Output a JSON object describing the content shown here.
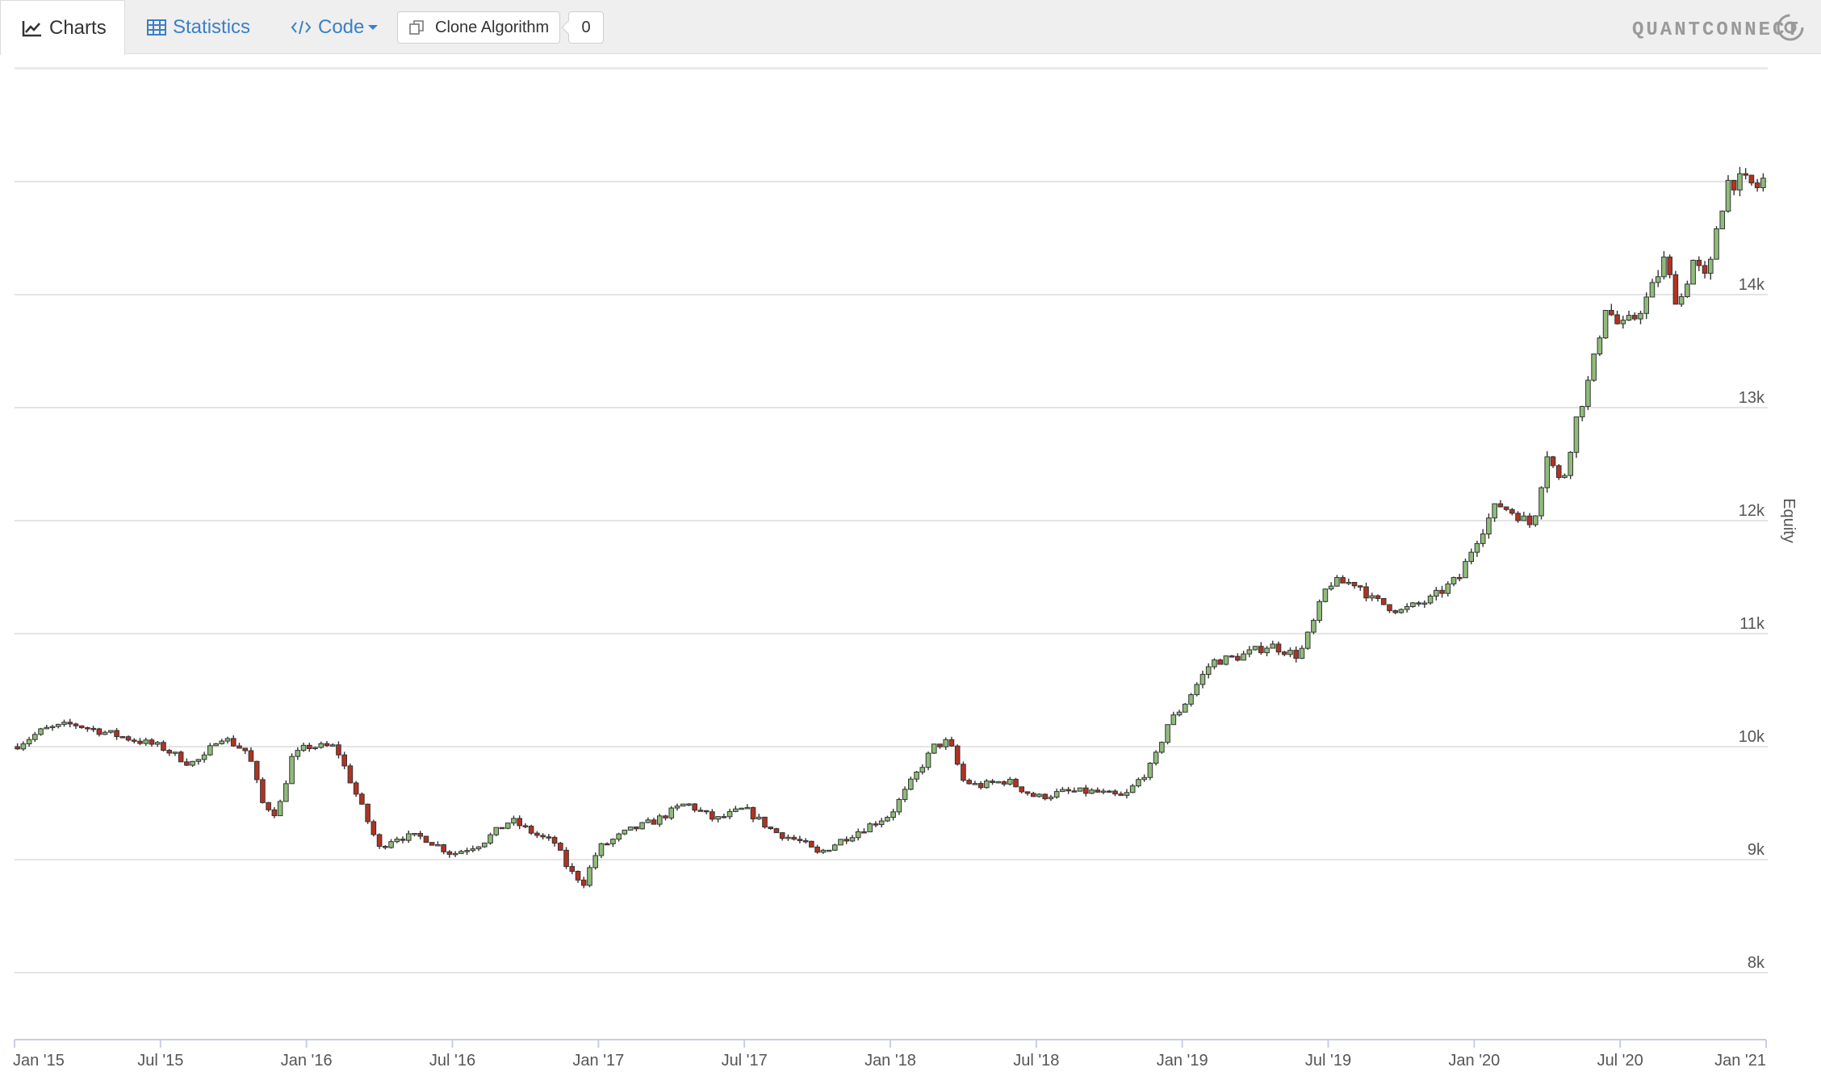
{
  "toolbar": {
    "tabs": [
      {
        "label": "Charts",
        "icon": "line-chart-icon",
        "active": true
      },
      {
        "label": "Statistics",
        "icon": "table-icon",
        "active": false
      },
      {
        "label": "Code",
        "icon": "code-icon",
        "active": false
      }
    ],
    "clone_label": "Clone Algorithm",
    "clone_count": "0",
    "brand": "QUANTCONNECT",
    "colors": {
      "link": "#3a80c4",
      "bar": "#efefef"
    }
  },
  "chart_data": {
    "type": "candlestick",
    "ylabel": "Equity",
    "ylim": [
      7500,
      15000
    ],
    "y_ticks": [
      {
        "value": 8000,
        "label": "8k"
      },
      {
        "value": 9000,
        "label": "9k"
      },
      {
        "value": 10000,
        "label": "10k"
      },
      {
        "value": 11000,
        "label": "11k"
      },
      {
        "value": 12000,
        "label": "12k"
      },
      {
        "value": 13000,
        "label": "13k"
      },
      {
        "value": 14000,
        "label": "14k"
      }
    ],
    "y_gridlines": [
      8000,
      9000,
      10000,
      11000,
      12000,
      13000,
      14000,
      15000,
      16000
    ],
    "x_ticks": [
      "Jan '15",
      "Jul '15",
      "Jan '16",
      "Jul '16",
      "Jan '17",
      "Jul '17",
      "Jan '18",
      "Jul '18",
      "Jan '19",
      "Jul '19",
      "Jan '20",
      "Jul '20",
      "Jan '21"
    ],
    "up_color": "#8fbc7a",
    "down_color": "#b33222",
    "anchors": [
      {
        "t": 0,
        "v": 10000
      },
      {
        "t": 0.1,
        "v": 10150
      },
      {
        "t": 0.2,
        "v": 10200
      },
      {
        "t": 0.35,
        "v": 10100
      },
      {
        "t": 0.5,
        "v": 10000
      },
      {
        "t": 0.6,
        "v": 9850
      },
      {
        "t": 0.65,
        "v": 9900
      },
      {
        "t": 0.7,
        "v": 10100
      },
      {
        "t": 0.8,
        "v": 9950
      },
      {
        "t": 0.85,
        "v": 9500
      },
      {
        "t": 0.9,
        "v": 9400
      },
      {
        "t": 0.95,
        "v": 9900
      },
      {
        "t": 1.0,
        "v": 10000
      },
      {
        "t": 1.1,
        "v": 10000
      },
      {
        "t": 1.15,
        "v": 9700
      },
      {
        "t": 1.2,
        "v": 9400
      },
      {
        "t": 1.25,
        "v": 9100
      },
      {
        "t": 1.3,
        "v": 9200
      },
      {
        "t": 1.4,
        "v": 9200
      },
      {
        "t": 1.5,
        "v": 9050
      },
      {
        "t": 1.6,
        "v": 9150
      },
      {
        "t": 1.7,
        "v": 9350
      },
      {
        "t": 1.8,
        "v": 9200
      },
      {
        "t": 1.85,
        "v": 9150
      },
      {
        "t": 1.9,
        "v": 8900
      },
      {
        "t": 1.95,
        "v": 8800
      },
      {
        "t": 2.0,
        "v": 9100
      },
      {
        "t": 2.1,
        "v": 9250
      },
      {
        "t": 2.2,
        "v": 9350
      },
      {
        "t": 2.3,
        "v": 9500
      },
      {
        "t": 2.4,
        "v": 9350
      },
      {
        "t": 2.5,
        "v": 9450
      },
      {
        "t": 2.6,
        "v": 9250
      },
      {
        "t": 2.7,
        "v": 9150
      },
      {
        "t": 2.75,
        "v": 9050
      },
      {
        "t": 2.85,
        "v": 9200
      },
      {
        "t": 3.0,
        "v": 9400
      },
      {
        "t": 3.05,
        "v": 9600
      },
      {
        "t": 3.1,
        "v": 9800
      },
      {
        "t": 3.15,
        "v": 10000
      },
      {
        "t": 3.2,
        "v": 10050
      },
      {
        "t": 3.25,
        "v": 9700
      },
      {
        "t": 3.3,
        "v": 9650
      },
      {
        "t": 3.4,
        "v": 9700
      },
      {
        "t": 3.5,
        "v": 9550
      },
      {
        "t": 3.6,
        "v": 9600
      },
      {
        "t": 3.7,
        "v": 9600
      },
      {
        "t": 3.8,
        "v": 9550
      },
      {
        "t": 3.9,
        "v": 9850
      },
      {
        "t": 3.95,
        "v": 10200
      },
      {
        "t": 4.0,
        "v": 10350
      },
      {
        "t": 4.1,
        "v": 10750
      },
      {
        "t": 4.2,
        "v": 10800
      },
      {
        "t": 4.3,
        "v": 10900
      },
      {
        "t": 4.4,
        "v": 10800
      },
      {
        "t": 4.45,
        "v": 11100
      },
      {
        "t": 4.5,
        "v": 11450
      },
      {
        "t": 4.6,
        "v": 11450
      },
      {
        "t": 4.65,
        "v": 11300
      },
      {
        "t": 4.75,
        "v": 11200
      },
      {
        "t": 4.85,
        "v": 11300
      },
      {
        "t": 4.95,
        "v": 11500
      },
      {
        "t": 5.0,
        "v": 11800
      },
      {
        "t": 5.08,
        "v": 12150
      },
      {
        "t": 5.15,
        "v": 12050
      },
      {
        "t": 5.2,
        "v": 11950
      },
      {
        "t": 5.25,
        "v": 12600
      },
      {
        "t": 5.3,
        "v": 12300
      },
      {
        "t": 5.35,
        "v": 12900
      },
      {
        "t": 5.4,
        "v": 13300
      },
      {
        "t": 5.45,
        "v": 13900
      },
      {
        "t": 5.5,
        "v": 13700
      },
      {
        "t": 5.55,
        "v": 13800
      },
      {
        "t": 5.6,
        "v": 14000
      },
      {
        "t": 5.65,
        "v": 14300
      },
      {
        "t": 5.7,
        "v": 13900
      },
      {
        "t": 5.75,
        "v": 14300
      },
      {
        "t": 5.8,
        "v": 14100
      },
      {
        "t": 5.83,
        "v": 14600
      },
      {
        "t": 5.87,
        "v": 15000
      },
      {
        "t": 5.92,
        "v": 15000
      },
      {
        "t": 5.97,
        "v": 14950
      },
      {
        "t": 6.0,
        "v": 15050
      }
    ]
  }
}
